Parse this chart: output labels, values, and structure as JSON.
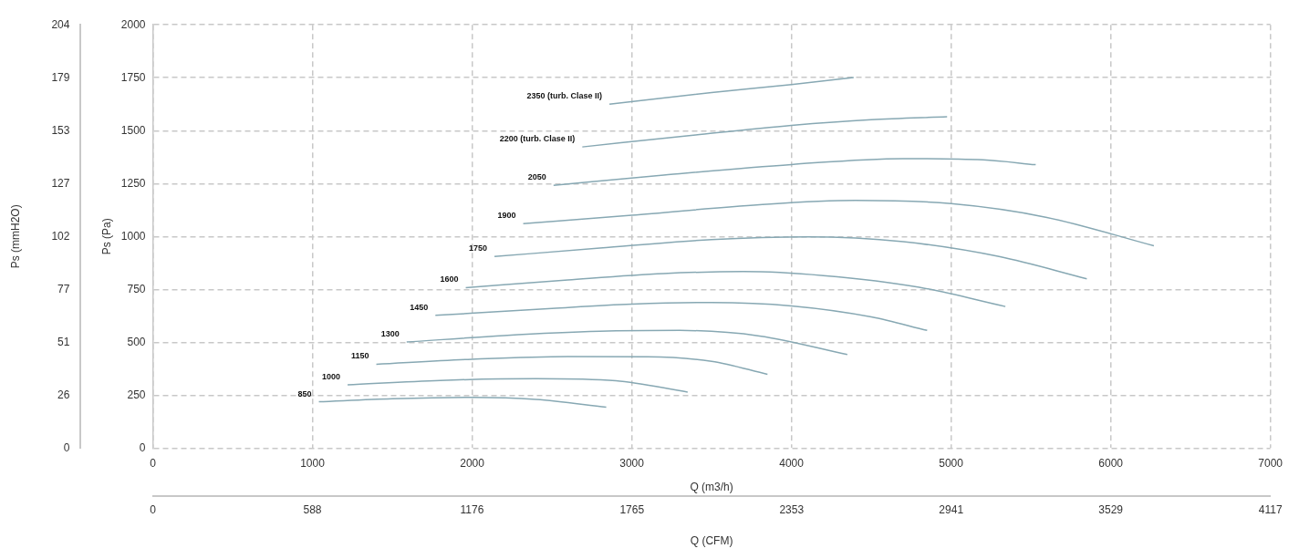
{
  "chart_data": {
    "type": "line",
    "xlabel": "Q (m3/h)",
    "ylabel": "Ps (Pa)",
    "x2label": "Q (CFM)",
    "y2label": "Ps (mmH2O)",
    "xlim": [
      0,
      7000
    ],
    "xticks": [
      0,
      1000,
      2000,
      3000,
      4000,
      5000,
      6000,
      7000
    ],
    "ylim": [
      0,
      2000
    ],
    "yticks": [
      0,
      250,
      500,
      750,
      1000,
      1250,
      1500,
      1750,
      2000
    ],
    "x2lim": [
      0,
      4117
    ],
    "x2ticks": [
      0,
      588,
      1176,
      1765,
      2353,
      2941,
      3529,
      4117
    ],
    "y2lim": [
      0,
      204
    ],
    "y2ticks": [
      0,
      {
        "value": 25.5,
        "label": "26"
      },
      51,
      {
        "value": 76.5,
        "label": "77"
      },
      102,
      {
        "value": 127.5,
        "label": "127"
      },
      153,
      {
        "value": 178.5,
        "label": "179"
      },
      204
    ],
    "grid": true,
    "legend": false,
    "marker": "none",
    "line_style": "solid",
    "series": [
      {
        "name": "850",
        "color": "#87a8b3",
        "x": [
          1040,
          1500,
          2000,
          2400,
          2840
        ],
        "values": [
          219,
          233,
          240,
          230,
          193
        ]
      },
      {
        "name": "1000",
        "color": "#87a8b3",
        "x": [
          1220,
          1800,
          2400,
          2900,
          3350
        ],
        "values": [
          299,
          320,
          328,
          318,
          265
        ]
      },
      {
        "name": "1150",
        "color": "#87a8b3",
        "x": [
          1400,
          2000,
          2600,
          3100,
          3500,
          3850
        ],
        "values": [
          396,
          420,
          433,
          432,
          410,
          349
        ]
      },
      {
        "name": "1300",
        "color": "#87a8b3",
        "x": [
          1590,
          2200,
          2800,
          3300,
          3800,
          4350
        ],
        "values": [
          501,
          532,
          552,
          556,
          530,
          442
        ]
      },
      {
        "name": "1450",
        "color": "#87a8b3",
        "x": [
          1770,
          2500,
          3000,
          3500,
          4000,
          4500,
          4850
        ],
        "values": [
          627,
          660,
          680,
          688,
          672,
          620,
          556
        ]
      },
      {
        "name": "1600",
        "color": "#87a8b3",
        "x": [
          1960,
          2600,
          3200,
          3700,
          4200,
          4800,
          5340
        ],
        "values": [
          758,
          795,
          825,
          834,
          815,
          760,
          669
        ]
      },
      {
        "name": "1750",
        "color": "#87a8b3",
        "x": [
          2140,
          2800,
          3500,
          4100,
          4700,
          5300,
          5850
        ],
        "values": [
          905,
          945,
          985,
          998,
          975,
          905,
          800
        ]
      },
      {
        "name": "1900",
        "color": "#87a8b3",
        "x": [
          2320,
          3000,
          3800,
          4400,
          5000,
          5600,
          6270
        ],
        "values": [
          1061,
          1100,
          1150,
          1170,
          1155,
          1090,
          956
        ]
      },
      {
        "name": "2050",
        "color": "#87a8b3",
        "x": [
          2510,
          3200,
          4000,
          4700,
          5200,
          5530
        ],
        "values": [
          1242,
          1290,
          1340,
          1368,
          1362,
          1339
        ]
      },
      {
        "name": "2200 (turb. Clase II)",
        "color": "#87a8b3",
        "x": [
          2690,
          3400,
          4000,
          4500,
          4975
        ],
        "values": [
          1423,
          1480,
          1525,
          1552,
          1566
        ]
      },
      {
        "name": "2350 (turb. Clase II)",
        "color": "#87a8b3",
        "x": [
          2860,
          3500,
          4000,
          4390
        ],
        "values": [
          1625,
          1680,
          1718,
          1751
        ]
      }
    ]
  }
}
